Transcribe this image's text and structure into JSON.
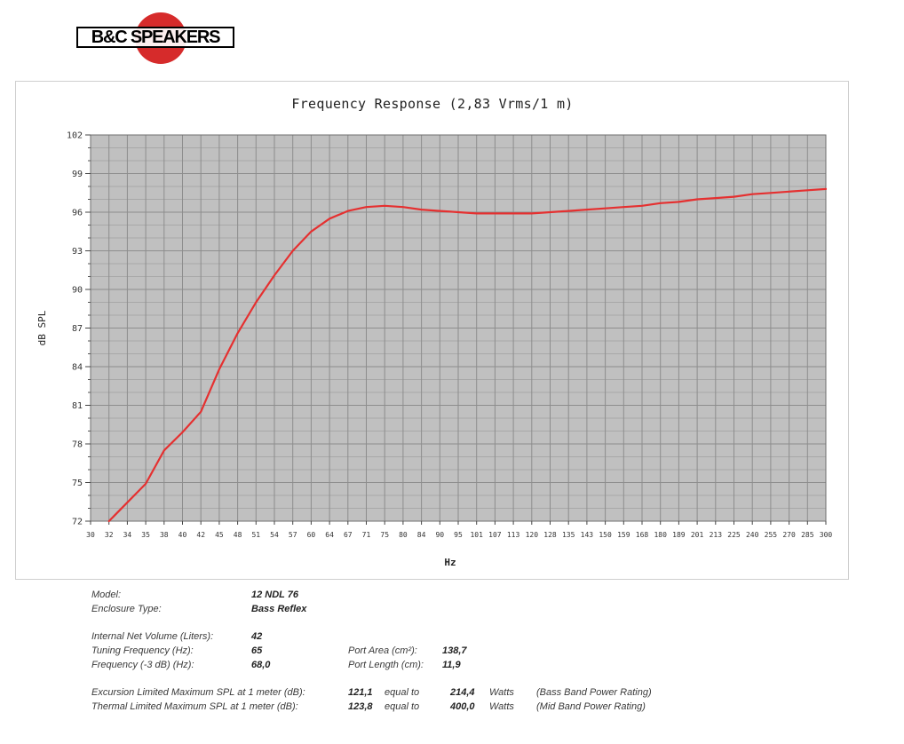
{
  "logo": {
    "text": "B&C SPEAKERS"
  },
  "chart_data": {
    "type": "line",
    "title": "Frequency Response (2,83 Vrms/1 m)",
    "xlabel": "Hz",
    "ylabel": "dB SPL",
    "x_ticks": [
      "30",
      "32",
      "34",
      "35",
      "38",
      "40",
      "42",
      "45",
      "48",
      "51",
      "54",
      "57",
      "60",
      "64",
      "67",
      "71",
      "75",
      "80",
      "84",
      "90",
      "95",
      "101",
      "107",
      "113",
      "120",
      "128",
      "135",
      "143",
      "150",
      "159",
      "168",
      "180",
      "189",
      "201",
      "213",
      "225",
      "240",
      "255",
      "270",
      "285",
      "300"
    ],
    "y_ticks": [
      72,
      75,
      78,
      81,
      84,
      87,
      90,
      93,
      96,
      99,
      102
    ],
    "ylim": [
      72,
      102
    ],
    "grid": true,
    "line_color": "#e53030",
    "plot_bg": "#c0c0c0",
    "series": [
      {
        "x": [
          32,
          35,
          38,
          40,
          42,
          45,
          48,
          51,
          54,
          57,
          60,
          64,
          67,
          71,
          75,
          80,
          84,
          90,
          95,
          101,
          107,
          113,
          120,
          128,
          135,
          143,
          150,
          159,
          168,
          180,
          189,
          201,
          213,
          225,
          240,
          255,
          270,
          285,
          300
        ],
        "values": [
          72.0,
          74.9,
          77.5,
          78.9,
          80.5,
          83.8,
          86.6,
          89.0,
          91.1,
          93.0,
          94.5,
          95.5,
          96.1,
          96.4,
          96.5,
          96.4,
          96.2,
          96.1,
          96.0,
          95.9,
          95.9,
          95.9,
          95.9,
          96.0,
          96.1,
          96.2,
          96.3,
          96.4,
          96.5,
          96.7,
          96.8,
          97.0,
          97.1,
          97.2,
          97.4,
          97.5,
          97.6,
          97.7,
          97.8
        ]
      }
    ]
  },
  "specs": {
    "model_label": "Model:",
    "model_value": "12 NDL 76",
    "enclosure_label": "Enclosure Type:",
    "enclosure_value": "Bass Reflex",
    "volume_label": "Internal  Net Volume (Liters):",
    "volume_value": "42",
    "tuning_label": "Tuning Frequency (Hz):",
    "tuning_value": "65",
    "f3_label": "Frequency (-3 dB) (Hz):",
    "f3_value": "68,0",
    "port_area_label": "Port Area (cm²):",
    "port_area_value": "138,7",
    "port_length_label": "Port Length (cm):",
    "port_length_value": "11,9",
    "excursion_label": "Excursion Limited Maximum SPL at 1 meter (dB):",
    "excursion_value": "121,1",
    "excursion_eq": "equal to",
    "excursion_watts": "214,4",
    "excursion_unit": "Watts",
    "excursion_note": "(Bass Band Power Rating)",
    "thermal_label": "Thermal Limited Maximum SPL at 1 meter (dB):",
    "thermal_value": "123,8",
    "thermal_eq": "equal to",
    "thermal_watts": "400,0",
    "thermal_unit": "Watts",
    "thermal_note": "(Mid Band Power Rating)"
  }
}
